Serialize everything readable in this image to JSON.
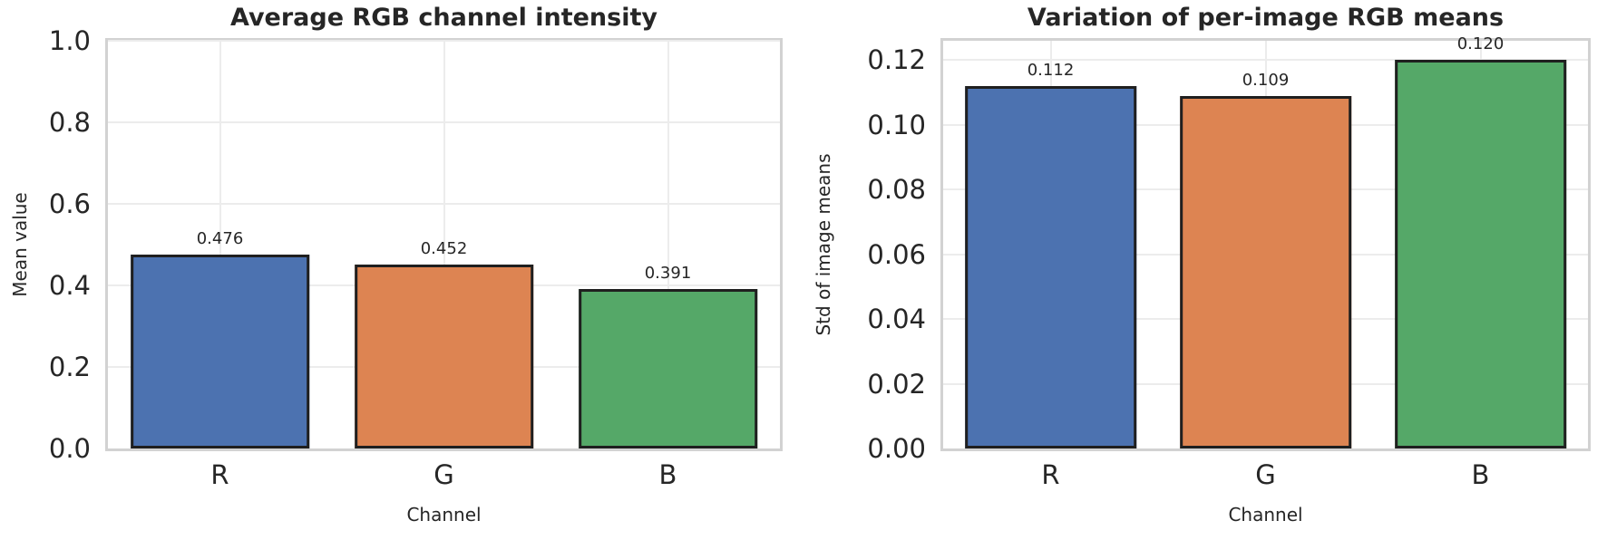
{
  "colors": {
    "background": "#ffffff",
    "text": "#262626",
    "grid": "#ececec",
    "spine": "#d2d2d2",
    "bar_edge": "#1f1f1f",
    "palette": [
      "#4c72b0",
      "#dd8452",
      "#55a868"
    ]
  },
  "chart_data": [
    {
      "type": "bar",
      "title": "Average RGB channel intensity",
      "xlabel": "Channel",
      "ylabel": "Mean value",
      "categories": [
        "R",
        "G",
        "B"
      ],
      "values": [
        0.476,
        0.452,
        0.391
      ],
      "bar_labels": [
        "0.476",
        "0.452",
        "0.391"
      ],
      "bar_colors": [
        "#4c72b0",
        "#dd8452",
        "#55a868"
      ],
      "ylim": [
        0,
        1.0
      ],
      "ytick_values": [
        0.0,
        0.2,
        0.4,
        0.6,
        0.8,
        1.0
      ],
      "ytick_labels": [
        "0.0",
        "0.2",
        "0.4",
        "0.6",
        "0.8",
        "1.0"
      ],
      "grid": true,
      "legend": false
    },
    {
      "type": "bar",
      "title": "Variation of per-image RGB means",
      "xlabel": "Channel",
      "ylabel": "Std of image means",
      "categories": [
        "R",
        "G",
        "B"
      ],
      "values": [
        0.112,
        0.109,
        0.12
      ],
      "bar_labels": [
        "0.112",
        "0.109",
        "0.120"
      ],
      "bar_colors": [
        "#4c72b0",
        "#dd8452",
        "#55a868"
      ],
      "ylim": [
        0,
        0.126
      ],
      "ytick_values": [
        0.0,
        0.02,
        0.04,
        0.06,
        0.08,
        0.1,
        0.12
      ],
      "ytick_labels": [
        "0.00",
        "0.02",
        "0.04",
        "0.06",
        "0.08",
        "0.10",
        "0.12"
      ],
      "grid": true,
      "legend": false
    }
  ]
}
